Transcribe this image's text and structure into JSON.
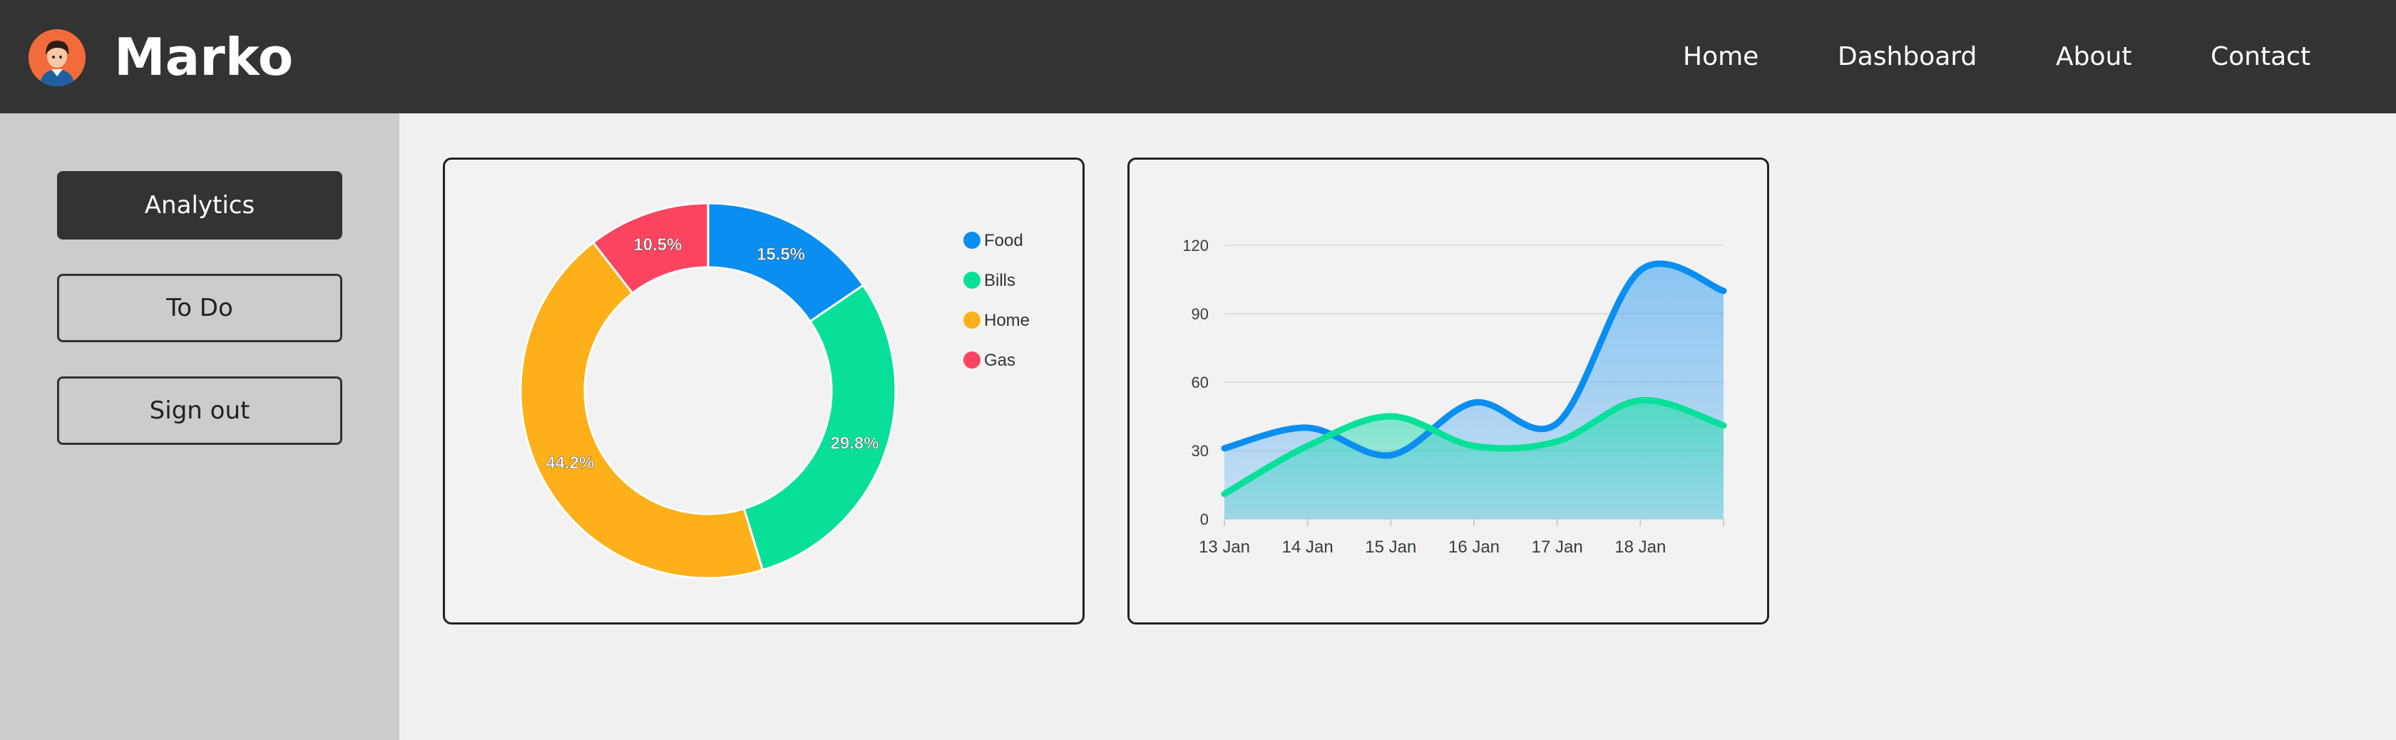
{
  "app": {
    "name": "Marko"
  },
  "nav": {
    "items": [
      "Home",
      "Dashboard",
      "About",
      "Contact"
    ]
  },
  "sidebar": {
    "items": [
      {
        "label": "Analytics",
        "active": true
      },
      {
        "label": "To Do"
      },
      {
        "label": "Sign out"
      }
    ]
  },
  "colors": {
    "topbar": "#333333",
    "sidebar": "#cccccc",
    "background": "#f1f1f1",
    "blue": "#0a8ef0",
    "green": "#08e09a",
    "orange": "#feb01a",
    "red": "#fb4560"
  },
  "chart_data": [
    {
      "type": "pie",
      "variant": "donut",
      "categories": [
        "Food",
        "Bills",
        "Home",
        "Gas"
      ],
      "values": [
        15.5,
        29.8,
        44.2,
        10.5
      ],
      "labels": [
        "15.5%",
        "29.8%",
        "44.2%",
        "10.5%"
      ],
      "colors": [
        "#0a8ef0",
        "#08e09a",
        "#feb01a",
        "#fb4560"
      ],
      "legend": "right"
    },
    {
      "type": "area",
      "x": [
        "13 Jan",
        "14 Jan",
        "15 Jan",
        "16 Jan",
        "17 Jan",
        "18 Jan",
        ""
      ],
      "series": [
        {
          "values": [
            31,
            40,
            28,
            51,
            42,
            109,
            100
          ],
          "color": "#0a8ef0"
        },
        {
          "values": [
            11,
            32,
            45,
            32,
            34,
            52,
            41
          ],
          "color": "#08e09a"
        }
      ],
      "ylim": [
        0,
        120
      ],
      "yticks": [
        0,
        30,
        60,
        90,
        120
      ],
      "grid": true
    }
  ]
}
